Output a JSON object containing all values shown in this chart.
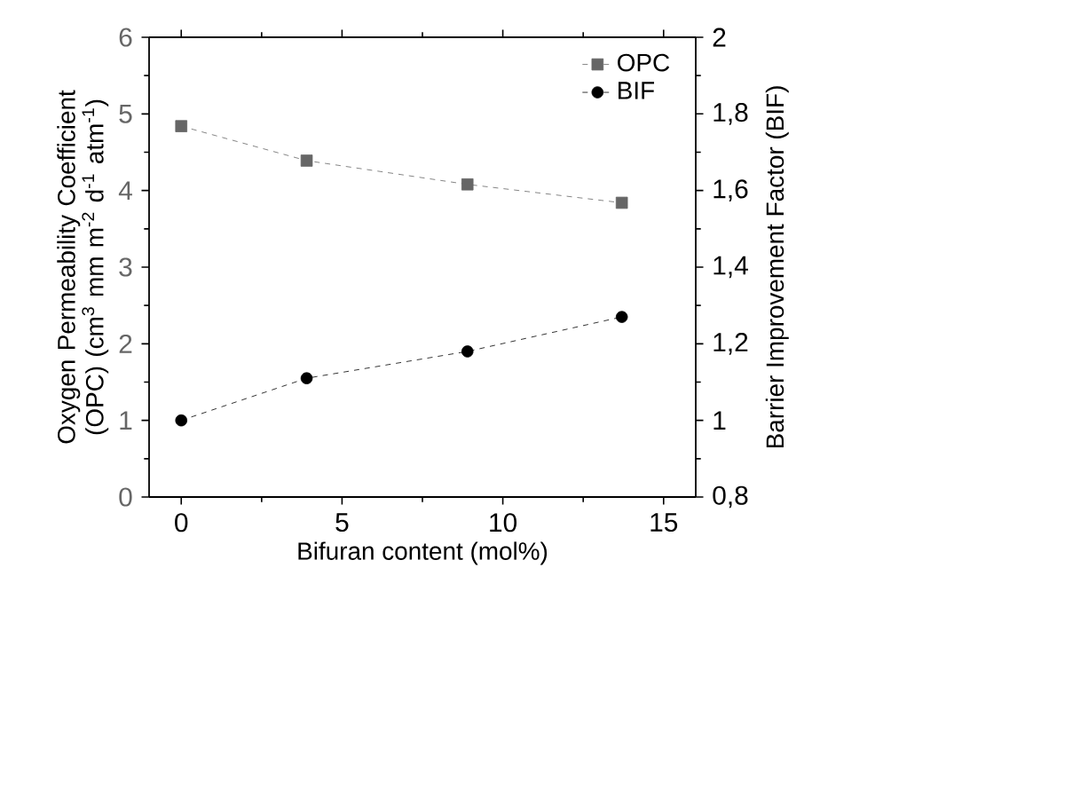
{
  "chart_data": {
    "type": "line",
    "xlabel": "Bifuran content (mol%)",
    "ylabel": "Oxygen Permeability Coefficient (OPC) (cm$^{3}$ mm m$^{-2}$ d$^{-1}$ atm$^{-1}$)",
    "y2label": "Barrier Improvement Factor (BIF)",
    "x": [
      0,
      3.9,
      8.9,
      13.7
    ],
    "series": [
      {
        "name": "OPC",
        "color": "#666666",
        "marker": "square",
        "values": [
          4.84,
          4.39,
          4.08,
          3.84
        ]
      },
      {
        "name": "BIF",
        "color": "#000000",
        "marker": "circle",
        "axis": "y2",
        "values": [
          1.0,
          1.11,
          1.18,
          1.27
        ]
      }
    ],
    "xlim": [
      -1,
      16
    ],
    "xticks": [
      0,
      5,
      10,
      15
    ],
    "ylim": [
      0,
      6
    ],
    "yticks": [
      0,
      1,
      2,
      3,
      4,
      5,
      6
    ],
    "y2lim": [
      0.8,
      2
    ],
    "y2ticks": [
      {
        "value": 0.8,
        "label": "0,8"
      },
      {
        "value": 1,
        "label": "1"
      },
      {
        "value": 1.2,
        "label": "1,2"
      },
      {
        "value": 1.4,
        "label": "1,4"
      },
      {
        "value": 1.6,
        "label": "1,6"
      },
      {
        "value": 1.8,
        "label": "1,8"
      },
      {
        "value": 2,
        "label": "2"
      }
    ],
    "legend": "top right",
    "line_style": "dashed",
    "grid": false
  }
}
